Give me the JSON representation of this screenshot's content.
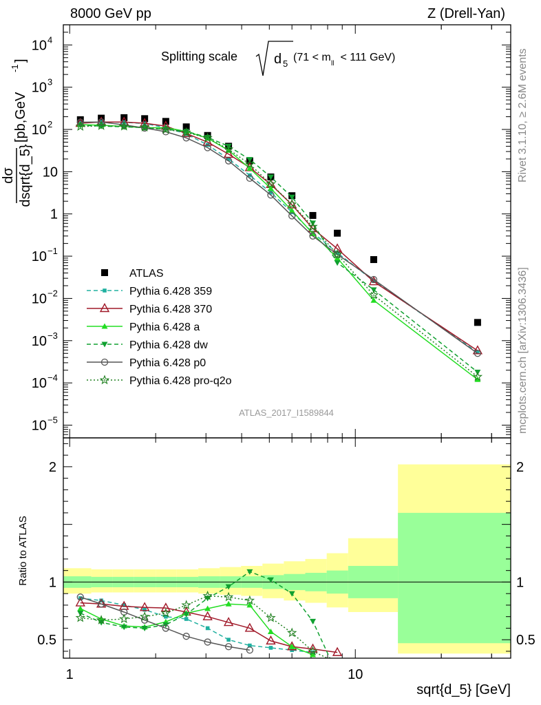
{
  "header": {
    "left": "8000 GeV pp",
    "right": "Z (Drell-Yan)"
  },
  "side_labels": {
    "rivet": "Rivet 3.1.10, ≥ 2.6M events",
    "mcplots": "mcplots.cern.ch [arXiv:1306.3436]"
  },
  "analysis_id": "ATLAS_2017_I1589844",
  "chart_data": [
    {
      "type": "scatter",
      "title": "Splitting scale √d₅ (71 < m_ll < 111 GeV)",
      "title_main": "Splitting scale",
      "title_sym": "d",
      "title_sub": "5",
      "title_range_a": "(71 < m",
      "title_range_sub": "ll",
      "title_range_b": " < 111 GeV)",
      "ylabel_num": "dσ",
      "ylabel_den": "dsqrt{d_5}",
      "ylabel_units": "[pb,GeV",
      "ylabel_units_exp": "-1",
      "ylabel_units_close": "]",
      "xscale": "log",
      "yscale": "log",
      "xlim": [
        0.95,
        35
      ],
      "ylim": [
        5e-06,
        30000.0
      ],
      "y_ticks": [
        {
          "v": 1e-05,
          "base": "10",
          "exp": "−5"
        },
        {
          "v": 0.0001,
          "base": "10",
          "exp": "−4"
        },
        {
          "v": 0.001,
          "base": "10",
          "exp": "−3"
        },
        {
          "v": 0.01,
          "base": "10",
          "exp": "−2"
        },
        {
          "v": 0.1,
          "base": "10",
          "exp": "−1"
        },
        {
          "v": 1,
          "base": "1",
          "exp": ""
        },
        {
          "v": 10,
          "base": "10",
          "exp": ""
        },
        {
          "v": 100,
          "base": "10",
          "exp": "2"
        },
        {
          "v": 1000,
          "base": "10",
          "exp": "3"
        },
        {
          "v": 10000,
          "base": "10",
          "exp": "4"
        }
      ],
      "x": [
        1.09,
        1.29,
        1.55,
        1.83,
        2.17,
        2.56,
        3.04,
        3.6,
        4.27,
        5.06,
        6.0,
        7.1,
        8.65,
        11.6,
        26.8
      ],
      "bin_edges": [
        1.0,
        1.19,
        1.41,
        1.68,
        2.0,
        2.37,
        2.82,
        3.35,
        3.98,
        4.73,
        5.62,
        6.68,
        7.94,
        9.44,
        14.1,
        50
      ],
      "legend_position": "left-center",
      "series": [
        {
          "name": "ATLAS",
          "color": "#000000",
          "marker": "square",
          "line": "none",
          "values": [
            170,
            185,
            190,
            180,
            155,
            115,
            72,
            40,
            18,
            7.5,
            2.7,
            0.92,
            0.35,
            0.083,
            0.0027
          ]
        },
        {
          "name": "Pythia 6.428 359",
          "color": "#20b0a0",
          "marker": "small-square",
          "line": "dashed",
          "values": [
            145,
            150,
            148,
            138,
            110,
            78,
            43,
            20,
            8.2,
            3.2,
            1.1,
            0.36,
            0.12,
            0.026,
            0.00053
          ]
        },
        {
          "name": "Pythia 6.428 370",
          "color": "#a01828",
          "marker": "open-triangle",
          "line": "solid",
          "values": [
            140,
            150,
            150,
            140,
            120,
            80,
            50,
            26,
            12.5,
            5.0,
            1.65,
            0.45,
            0.15,
            0.025,
            0.00058
          ]
        },
        {
          "name": "Pythia 6.428 a",
          "color": "#22dd22",
          "marker": "triangle",
          "line": "solid",
          "values": [
            130,
            126,
            118,
            110,
            110,
            90,
            62,
            32,
            12,
            4.0,
            1.2,
            0.34,
            0.09,
            0.009,
            0.00012
          ]
        },
        {
          "name": "Pythia 6.428 dw",
          "color": "#10a030",
          "marker": "triangle-down",
          "line": "dashed",
          "values": [
            125,
            120,
            115,
            110,
            100,
            90,
            65,
            40,
            19.5,
            7.5,
            2.5,
            0.61,
            0.07,
            0.016,
            0.00018
          ]
        },
        {
          "name": "Pythia 6.428 p0",
          "color": "#555555",
          "marker": "open-circle",
          "line": "solid",
          "values": [
            148,
            150,
            128,
            108,
            88,
            63,
            37,
            18,
            7.0,
            2.8,
            0.9,
            0.3,
            0.11,
            0.028,
            0.0005
          ]
        },
        {
          "name": "Pythia 6.428 pro-q2o",
          "color": "#208020",
          "marker": "open-star",
          "line": "dotted",
          "values": [
            117,
            122,
            118,
            112,
            100,
            85,
            63,
            34,
            15,
            5.1,
            1.7,
            0.5,
            0.11,
            0.012,
            0.00014
          ]
        }
      ]
    },
    {
      "type": "line",
      "ylabel": "Ratio to ATLAS",
      "xlabel": "sqrt{d_5} [GeV]",
      "xscale": "log",
      "xlim": [
        0.95,
        35
      ],
      "ylim": [
        0.34,
        2.25
      ],
      "x_ticks": [
        {
          "v": 1,
          "label": "1"
        },
        {
          "v": 10,
          "label": "10"
        }
      ],
      "y_ticks": [
        {
          "v": 0.5,
          "label": "0.5"
        },
        {
          "v": 1,
          "label": "1"
        },
        {
          "v": 2,
          "label": "2"
        }
      ],
      "band_edges": [
        0.95,
        1.19,
        1.41,
        1.68,
        2.0,
        2.37,
        2.82,
        3.35,
        3.98,
        4.73,
        5.62,
        6.68,
        7.94,
        9.44,
        14.1,
        35
      ],
      "band_stat": [
        [
          0.95,
          1.05
        ],
        [
          0.955,
          1.045
        ],
        [
          0.955,
          1.045
        ],
        [
          0.955,
          1.045
        ],
        [
          0.955,
          1.045
        ],
        [
          0.955,
          1.045
        ],
        [
          0.95,
          1.05
        ],
        [
          0.95,
          1.05
        ],
        [
          0.95,
          1.05
        ],
        [
          0.94,
          1.06
        ],
        [
          0.93,
          1.07
        ],
        [
          0.92,
          1.08
        ],
        [
          0.9,
          1.1
        ],
        [
          0.86,
          1.14
        ],
        [
          0.47,
          1.6
        ]
      ],
      "band_total": [
        [
          0.9,
          1.12
        ],
        [
          0.91,
          1.11
        ],
        [
          0.91,
          1.11
        ],
        [
          0.91,
          1.11
        ],
        [
          0.91,
          1.11
        ],
        [
          0.91,
          1.11
        ],
        [
          0.9,
          1.12
        ],
        [
          0.89,
          1.13
        ],
        [
          0.88,
          1.14
        ],
        [
          0.86,
          1.16
        ],
        [
          0.84,
          1.18
        ],
        [
          0.82,
          1.2
        ],
        [
          0.78,
          1.25
        ],
        [
          0.74,
          1.38
        ],
        [
          0.38,
          2.02
        ]
      ],
      "band_colors": {
        "stat": "#99ff99",
        "total": "#ffff99"
      },
      "series": [
        {
          "name": "Pythia 6.428 359",
          "values": [
            0.86,
            0.84,
            0.8,
            0.76,
            0.7,
            0.68,
            0.6,
            0.5,
            0.45,
            0.43,
            0.41,
            0.39
          ]
        },
        {
          "name": "Pythia 6.428 370",
          "values": [
            0.82,
            0.81,
            0.79,
            0.78,
            0.775,
            0.74,
            0.7,
            0.65,
            0.6,
            0.49,
            0.44,
            0.42,
            0.39
          ]
        },
        {
          "name": "Pythia 6.428 a",
          "values": [
            0.77,
            0.68,
            0.62,
            0.61,
            0.655,
            0.73,
            0.77,
            0.81,
            0.8,
            0.57,
            0.44,
            0.37
          ]
        },
        {
          "name": "Pythia 6.428 dw",
          "values": [
            0.73,
            0.65,
            0.61,
            0.6,
            0.63,
            0.72,
            0.86,
            0.96,
            1.09,
            1.02,
            0.9,
            0.66,
            0.2
          ]
        },
        {
          "name": "Pythia 6.428 p0",
          "values": [
            0.87,
            0.81,
            0.74,
            0.67,
            0.6,
            0.53,
            0.48,
            0.44,
            0.41
          ]
        },
        {
          "name": "Pythia 6.428 pro-q2o",
          "values": [
            0.69,
            0.67,
            0.68,
            0.7,
            0.73,
            0.8,
            0.88,
            0.87,
            0.84,
            0.69,
            0.56,
            0.4,
            0.3
          ]
        }
      ]
    }
  ]
}
